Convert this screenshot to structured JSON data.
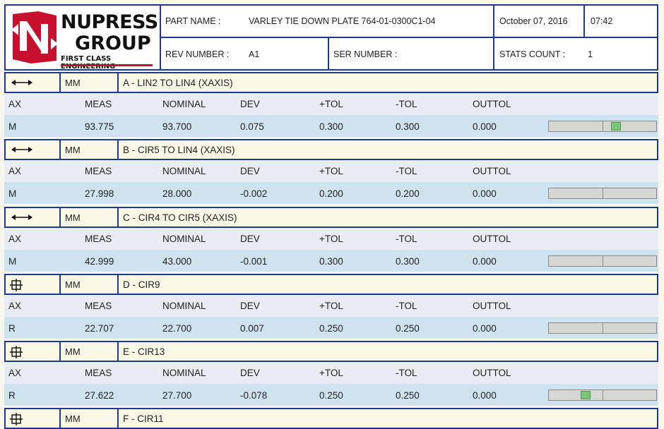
{
  "header": {
    "logo": {
      "line1": "NUPRESS",
      "line2": "GROUP",
      "tagline": "FIRST CLASS ENGINEERING"
    },
    "part_name_label": "PART NAME :",
    "part_name_value": "VARLEY TIE DOWN PLATE 764-01-0300C1-04",
    "date": "October 07, 2016",
    "time": "07:42",
    "rev_label": "REV NUMBER :",
    "rev_value": "A1",
    "ser_label": "SER NUMBER :",
    "stats_label": "STATS COUNT :",
    "stats_value": "1"
  },
  "columns": [
    "AX",
    "MEAS",
    "NOMINAL",
    "DEV",
    "+TOL",
    "-TOL",
    "OUTTOL"
  ],
  "sections": [
    {
      "symbol": "distance-arrow-icon",
      "unit": "MM",
      "name": "A - LIN2 TO LIN4 (XAXIS)",
      "row": {
        "ax": "M",
        "meas": "93.775",
        "nominal": "93.700",
        "dev": "0.075",
        "plus_tol": "0.300",
        "minus_tol": "0.300",
        "outtol": "0.000"
      },
      "gauge_deviation_fraction": 0.25
    },
    {
      "symbol": "distance-arrow-icon",
      "unit": "MM",
      "name": "B - CIR5 TO LIN4 (XAXIS)",
      "row": {
        "ax": "M",
        "meas": "27.998",
        "nominal": "28.000",
        "dev": "-0.002",
        "plus_tol": "0.200",
        "minus_tol": "0.200",
        "outtol": "0.000"
      },
      "gauge_deviation_fraction": -0.01
    },
    {
      "symbol": "distance-arrow-icon",
      "unit": "MM",
      "name": "C - CIR4 TO CIR5 (XAXIS)",
      "row": {
        "ax": "M",
        "meas": "42.999",
        "nominal": "43.000",
        "dev": "-0.001",
        "plus_tol": "0.300",
        "minus_tol": "0.300",
        "outtol": "0.000"
      },
      "gauge_deviation_fraction": 0.0
    },
    {
      "symbol": "position-target-icon",
      "unit": "MM",
      "name": "D - CIR9",
      "row": {
        "ax": "R",
        "meas": "22.707",
        "nominal": "22.700",
        "dev": "0.007",
        "plus_tol": "0.250",
        "minus_tol": "0.250",
        "outtol": "0.000"
      },
      "gauge_deviation_fraction": 0.03
    },
    {
      "symbol": "position-target-icon",
      "unit": "MM",
      "name": "E - CIR13",
      "row": {
        "ax": "R",
        "meas": "27.622",
        "nominal": "27.700",
        "dev": "-0.078",
        "plus_tol": "0.250",
        "minus_tol": "0.250",
        "outtol": "0.000"
      },
      "gauge_deviation_fraction": -0.31
    },
    {
      "symbol": "position-target-icon",
      "unit": "MM",
      "name": "F - CIR11"
    }
  ]
}
